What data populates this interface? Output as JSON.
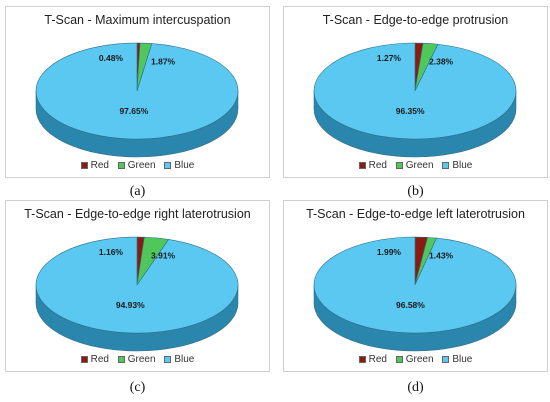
{
  "legend": {
    "labels": [
      "Red",
      "Green",
      "Blue"
    ],
    "colors": [
      "#8b1a10",
      "#4fc75a",
      "#5ac8f0"
    ]
  },
  "chart_data": [
    {
      "type": "pie",
      "title": "T-Scan - Maximum intercuspation",
      "caption": "(a)",
      "categories": [
        "Red",
        "Green",
        "Blue"
      ],
      "values": [
        0.48,
        1.87,
        97.65
      ],
      "labels": [
        "0.48%",
        "1.87%",
        "97.65%"
      ]
    },
    {
      "type": "pie",
      "title": "T-Scan - Edge-to-edge protrusion",
      "caption": "(b)",
      "categories": [
        "Red",
        "Green",
        "Blue"
      ],
      "values": [
        1.27,
        2.38,
        96.35
      ],
      "labels": [
        "1.27%",
        "2.38%",
        "96.35%"
      ]
    },
    {
      "type": "pie",
      "title": "T-Scan - Edge-to-edge right laterotrusion",
      "caption": "(c)",
      "categories": [
        "Red",
        "Green",
        "Blue"
      ],
      "values": [
        1.16,
        3.91,
        94.93
      ],
      "labels": [
        "1.16%",
        "3.91%",
        "94.93%"
      ]
    },
    {
      "type": "pie",
      "title": "T-Scan - Edge-to-edge left laterotrusion",
      "caption": "(d)",
      "categories": [
        "Red",
        "Green",
        "Blue"
      ],
      "values": [
        1.99,
        1.43,
        96.58
      ],
      "labels": [
        "1.99%",
        "1.43%",
        "96.58%"
      ]
    }
  ]
}
